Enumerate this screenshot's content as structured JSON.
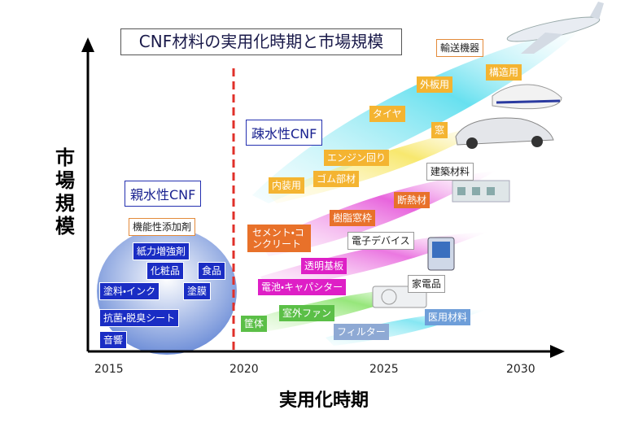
{
  "title": "CNF材料の実用化時期と市場規模",
  "axes": {
    "y": "市場規模",
    "x": "実用化時期",
    "years": [
      2015,
      2020,
      2025,
      2030
    ]
  },
  "groups": [
    {
      "label": "親水性CNF",
      "items": [
        "機能性添加剤",
        "紙力増強剤",
        "化粧品",
        "食品",
        "塗料・インク",
        "塗膜",
        "抗菌・脱臭シート",
        "音響"
      ]
    },
    {
      "label": "疎水性CNF",
      "items": [
        "輸送機器",
        "構造用",
        "外板用",
        "タイヤ",
        "窓",
        "エンジン回り",
        "ゴム部材",
        "内装用",
        "建築材料",
        "断熱材",
        "樹脂窓枠",
        "セメント・コンクリート",
        "電子デバイス",
        "透明基板",
        "電池・キャパシター",
        "家電品",
        "室外ファン",
        "筐体",
        "フィルター",
        "医用材料"
      ]
    }
  ]
}
